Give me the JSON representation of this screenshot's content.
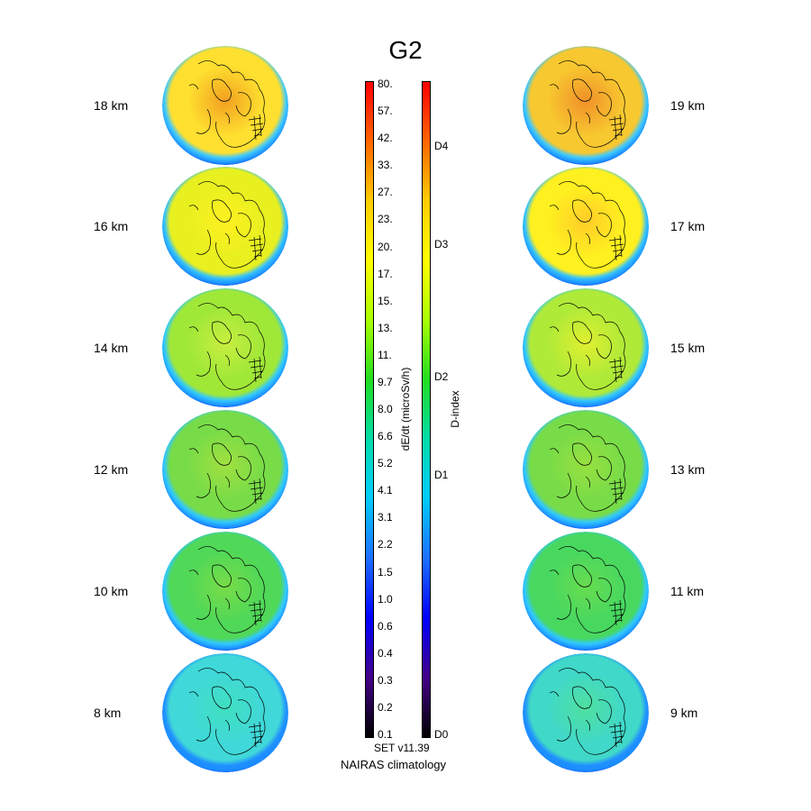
{
  "title": "G2",
  "left_labels": [
    "18 km",
    "16 km",
    "14 km",
    "12 km",
    "10 km",
    "8 km"
  ],
  "right_labels": [
    "19 km",
    "17 km",
    "15 km",
    "13 km",
    "11 km",
    "9 km"
  ],
  "dose_scale": {
    "label": "dE/dt (microSv/h)",
    "ticks": [
      "80.",
      "57.",
      "42.",
      "33.",
      "27.",
      "23.",
      "20.",
      "17.",
      "15.",
      "13.",
      "11.",
      "9.7",
      "8.0",
      "6.6",
      "5.2",
      "4.1",
      "3.1",
      "2.2",
      "1.5",
      "1.0",
      "0.6",
      "0.4",
      "0.3",
      "0.2",
      "0.1"
    ]
  },
  "dindex_scale": {
    "label": "D-index",
    "ticks": [
      "D4",
      "D3",
      "D2",
      "D1",
      "D0"
    ]
  },
  "version": "SET v11.39",
  "source": "NAIRAS climatology",
  "colors": {
    "colorbar": [
      "#ff0000",
      "#ff6600",
      "#ffcc00",
      "#ffff00",
      "#aaff00",
      "#22dd22",
      "#00ddaa",
      "#00ccff",
      "#1e6fff",
      "#0000ff",
      "#440088",
      "#000000"
    ],
    "globe_rim": "#0030ff"
  },
  "globes": {
    "left": [
      {
        "center": "#f2a020",
        "mid": "#ffe030",
        "edge": "#3cc8ff"
      },
      {
        "center": "#fff020",
        "mid": "#e8f020",
        "edge": "#30c0ff"
      },
      {
        "center": "#c8ee40",
        "mid": "#a0e838",
        "edge": "#30c8ff"
      },
      {
        "center": "#a0e040",
        "mid": "#78dc48",
        "edge": "#30c8ff"
      },
      {
        "center": "#78dc48",
        "mid": "#50d858",
        "edge": "#30c8ff"
      },
      {
        "center": "#40e0c0",
        "mid": "#40d8d8",
        "edge": "#2090ff"
      }
    ],
    "right": [
      {
        "center": "#f09028",
        "mid": "#f8c830",
        "edge": "#3cc8ff"
      },
      {
        "center": "#ffcc28",
        "mid": "#fff020",
        "edge": "#30c0ff"
      },
      {
        "center": "#e0f030",
        "mid": "#b0ea38",
        "edge": "#30c8ff"
      },
      {
        "center": "#98e040",
        "mid": "#78dc48",
        "edge": "#30c8ff"
      },
      {
        "center": "#68dc50",
        "mid": "#48d860",
        "edge": "#30c8ff"
      },
      {
        "center": "#50e0a0",
        "mid": "#40d8c8",
        "edge": "#2090ff"
      }
    ]
  }
}
